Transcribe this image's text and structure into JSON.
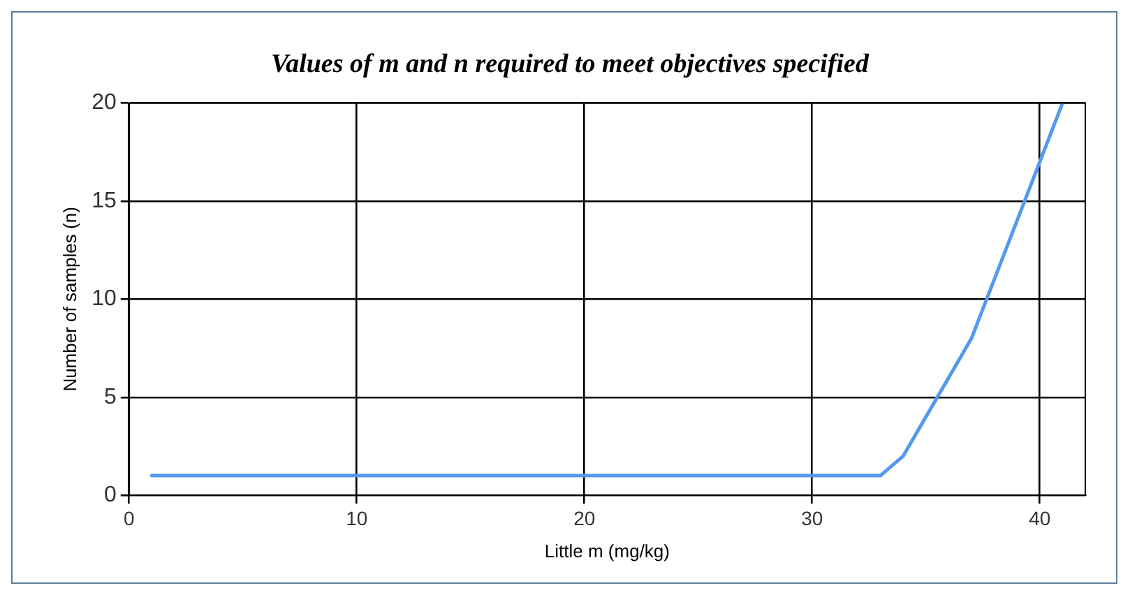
{
  "chart_data": {
    "type": "line",
    "title": "Values of m and n required to meet objectives specified",
    "xlabel": "Little m (mg/kg)",
    "ylabel": "Number of samples (n)",
    "x": [
      1,
      2,
      3,
      4,
      5,
      6,
      7,
      8,
      9,
      10,
      11,
      12,
      13,
      14,
      15,
      16,
      17,
      18,
      19,
      20,
      21,
      22,
      23,
      24,
      25,
      26,
      27,
      28,
      29,
      30,
      31,
      32,
      33,
      34,
      35,
      36,
      37,
      38,
      39,
      40,
      41
    ],
    "series": [
      {
        "color": "#5599ee",
        "values": [
          1,
          1,
          1,
          1,
          1,
          1,
          1,
          1,
          1,
          1,
          1,
          1,
          1,
          1,
          1,
          1,
          1,
          1,
          1,
          1,
          1,
          1,
          1,
          1,
          1,
          1,
          1,
          1,
          1,
          1,
          1,
          1,
          1,
          2,
          4,
          6,
          8,
          11,
          14,
          17,
          20
        ]
      }
    ],
    "xlim": [
      0,
      42
    ],
    "xticks": [
      0,
      10,
      20,
      30,
      40
    ],
    "ylim": [
      0,
      20
    ],
    "yticks": [
      0,
      5,
      10,
      15,
      20
    ],
    "grid": true,
    "legend": false,
    "marker": "none",
    "line_style": "solid"
  }
}
